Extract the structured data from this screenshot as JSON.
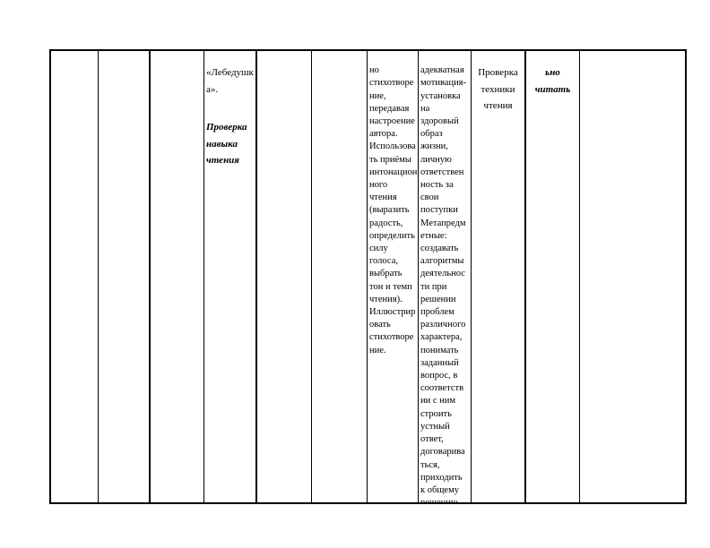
{
  "page": {
    "background": "#ffffff",
    "border_color": "#000000"
  },
  "table": {
    "cells": [
      {
        "name": "cell-empty-1",
        "text": ""
      },
      {
        "name": "cell-empty-2",
        "text": ""
      },
      {
        "name": "cell-empty-3",
        "text": ""
      },
      {
        "name": "cell-topic",
        "title": "«Лебедушк\nа».",
        "note": "Проверка\nнавыка\nчтения"
      },
      {
        "name": "cell-empty-5",
        "text": ""
      },
      {
        "name": "cell-empty-6",
        "text": ""
      },
      {
        "name": "cell-subject-skills",
        "text": "но\nстихотворе\nние,\nпередавая\nнастроение\nавтора.\nИспользова\nть приёмы\nинтонацион\nного\nчтения\n(выразить\nрадость,\nопределить\nсилу\nголоса,\nвыбрать\nтон и темп\nчтения).\nИллюстрир\nовать\nстихотворе\nние."
      },
      {
        "name": "cell-personal-metapredmet-results",
        "text": "адекватная\nмотивация-\nустановка\nна\nздоровый\nобраз\nжизни,\nличную\nответствен\nность за\nсвои\nпоступки\nМетапредм\nетные:\nсоздавать\nалгоритмы\nдеятельнос\nти при\nрешении\nпроблем\nразличного\nхарактера,\nпонимать\nзаданный\nвопрос, в\nсоответств\nии с ним\nстроить\nустный\nответ,\nдоговарива\nться,\nприходить\nк общему\nрешению"
      },
      {
        "name": "cell-control-type",
        "text": "Проверка\nтехники\nчтения"
      },
      {
        "name": "cell-reading-note",
        "text": "ьно\nчитать"
      },
      {
        "name": "cell-empty-11",
        "text": ""
      }
    ]
  }
}
